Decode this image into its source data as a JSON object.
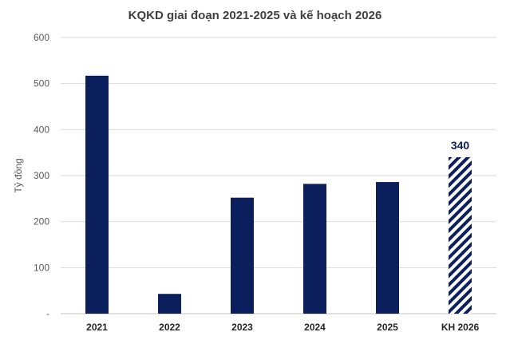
{
  "chart_data": {
    "type": "bar",
    "title": "KQKD giai đoạn 2021-2025 và kế hoạch 2026",
    "ylabel": "Tỷ đồng",
    "xlabel": "",
    "ylim": [
      0,
      600
    ],
    "y_ticks": [
      "-",
      "100",
      "200",
      "300",
      "400",
      "500",
      "600"
    ],
    "y_tick_values": [
      0,
      100,
      200,
      300,
      400,
      500,
      600
    ],
    "grid": true,
    "categories": [
      "2021",
      "2022",
      "2023",
      "2024",
      "2025",
      "KH 2026"
    ],
    "values": [
      517,
      43,
      252,
      282,
      286,
      340
    ],
    "bar_style": [
      "solid",
      "solid",
      "solid",
      "solid",
      "solid",
      "hatched"
    ],
    "data_labels": [
      null,
      null,
      null,
      null,
      null,
      "340"
    ],
    "colors": {
      "bar": "#0b1f5c",
      "grid": "#d9d9d9",
      "axis": "#bfbfbf"
    }
  }
}
